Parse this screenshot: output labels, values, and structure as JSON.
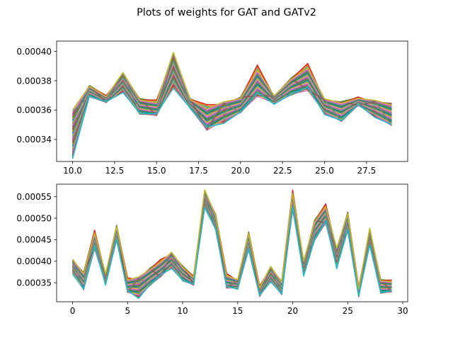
{
  "figure": {
    "title": "Plots of weights for GAT and GATv2"
  },
  "chart_data": [
    {
      "type": "line",
      "subplot": "top",
      "x": [
        10,
        11,
        12,
        13,
        14,
        15,
        16,
        17,
        18,
        19,
        20,
        21,
        22,
        23,
        24,
        25,
        26,
        27,
        28,
        29
      ],
      "xlim": [
        9.05,
        29.95
      ],
      "ylim": [
        0.000325,
        0.000407
      ],
      "xticks": [
        10.0,
        12.5,
        15.0,
        17.5,
        20.0,
        22.5,
        25.0,
        27.5
      ],
      "xtick_labels": [
        "10.0",
        "12.5",
        "15.0",
        "17.5",
        "20.0",
        "22.5",
        "25.0",
        "27.5"
      ],
      "yticks": [
        0.00034,
        0.00036,
        0.00038,
        0.0004
      ],
      "ytick_labels": [
        "0.00034",
        "0.00036",
        "0.00038",
        "0.00040"
      ],
      "grid": false,
      "series_count": 40,
      "envelope": {
        "upper": [
          0.000361,
          0.000377,
          0.00037,
          0.000386,
          0.000368,
          0.000367,
          0.0004,
          0.000368,
          0.000364,
          0.000366,
          0.000369,
          0.000391,
          0.00037,
          0.000382,
          0.000392,
          0.000368,
          0.000366,
          0.000369,
          0.000367,
          0.000365
        ],
        "lower": [
          0.000327,
          0.000369,
          0.000365,
          0.000372,
          0.000357,
          0.000356,
          0.000375,
          0.000361,
          0.000346,
          0.000351,
          0.000358,
          0.000369,
          0.000364,
          0.00037,
          0.000373,
          0.000357,
          0.000352,
          0.000363,
          0.000355,
          0.000349
        ]
      }
    },
    {
      "type": "line",
      "subplot": "bottom",
      "x": [
        0,
        1,
        2,
        3,
        4,
        5,
        6,
        7,
        8,
        9,
        10,
        11,
        12,
        13,
        14,
        15,
        16,
        17,
        18,
        19,
        20,
        21,
        22,
        23,
        24,
        25,
        26,
        27,
        28,
        29
      ],
      "xlim": [
        -1.45,
        30.45
      ],
      "ylim": [
        0.000306,
        0.000579
      ],
      "xticks": [
        0,
        5,
        10,
        15,
        20,
        25,
        30
      ],
      "xtick_labels": [
        "0",
        "5",
        "10",
        "15",
        "20",
        "25",
        "30"
      ],
      "yticks": [
        0.00035,
        0.0004,
        0.00045,
        0.0005,
        0.00055
      ],
      "ytick_labels": [
        "0.00035",
        "0.00040",
        "0.00045",
        "0.00050",
        "0.00055"
      ],
      "grid": false,
      "series_count": 40,
      "envelope": {
        "upper": [
          0.000406,
          0.000375,
          0.000473,
          0.000372,
          0.000484,
          0.000362,
          0.000365,
          0.000384,
          0.000405,
          0.000422,
          0.00039,
          0.000366,
          0.000567,
          0.00051,
          0.000372,
          0.000358,
          0.000469,
          0.000343,
          0.000389,
          0.000354,
          0.000566,
          0.000402,
          0.000497,
          0.000534,
          0.000432,
          0.000515,
          0.00034,
          0.000478,
          0.000358,
          0.000357
        ],
        "lower": [
          0.00037,
          0.000333,
          0.000428,
          0.000345,
          0.000448,
          0.000327,
          0.000314,
          0.000342,
          0.000363,
          0.000383,
          0.000354,
          0.000344,
          0.000524,
          0.000472,
          0.000337,
          0.000335,
          0.000425,
          0.000318,
          0.000352,
          0.000322,
          0.000519,
          0.000366,
          0.000448,
          0.000487,
          0.000383,
          0.00047,
          0.000317,
          0.000437,
          0.000325,
          0.000328
        ]
      }
    }
  ],
  "colors": {
    "palette": [
      "#1f77b4",
      "#ff7f0e",
      "#2ca02c",
      "#d62728",
      "#9467bd",
      "#8c564b",
      "#e377c2",
      "#7f7f7f",
      "#bcbd22",
      "#17becf"
    ]
  }
}
